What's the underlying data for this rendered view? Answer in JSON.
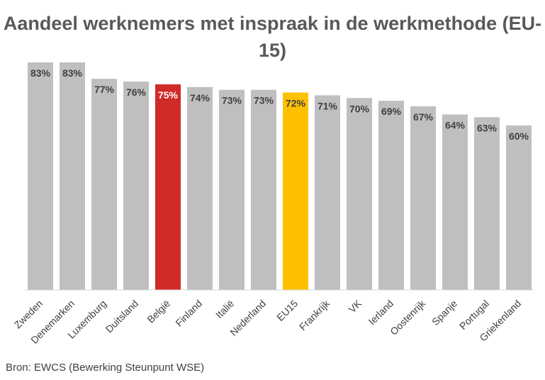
{
  "chart_data": {
    "type": "bar",
    "title": "Aandeel werknemers met inspraak in de werkmethode (EU-15)",
    "categories": [
      "Zweden",
      "Denemarken",
      "Luxemburg",
      "Duitsland",
      "België",
      "Finland",
      "Italië",
      "Nederland",
      "EU15",
      "Frankrijk",
      "VK",
      "Ierland",
      "Oostenrijk",
      "Spanje",
      "Portugal",
      "Griekenland"
    ],
    "values": [
      83,
      83,
      77,
      76,
      75,
      74,
      73,
      73,
      72,
      71,
      70,
      69,
      67,
      64,
      63,
      60
    ],
    "value_labels": [
      "83%",
      "83%",
      "77%",
      "76%",
      "75%",
      "74%",
      "73%",
      "73%",
      "72%",
      "71%",
      "70%",
      "69%",
      "67%",
      "64%",
      "63%",
      "60%"
    ],
    "ylim": [
      0,
      83
    ],
    "grid": false,
    "legend": "none",
    "colors": {
      "default_bar": "#bfbfbf",
      "highlight_belgie": "#d02a29",
      "highlight_eu15": "#fdc000",
      "label_dark": "#404040",
      "label_on_highlight": "#ffffff"
    }
  },
  "source": "Bron: EWCS (Bewerking Steunpunt WSE)"
}
